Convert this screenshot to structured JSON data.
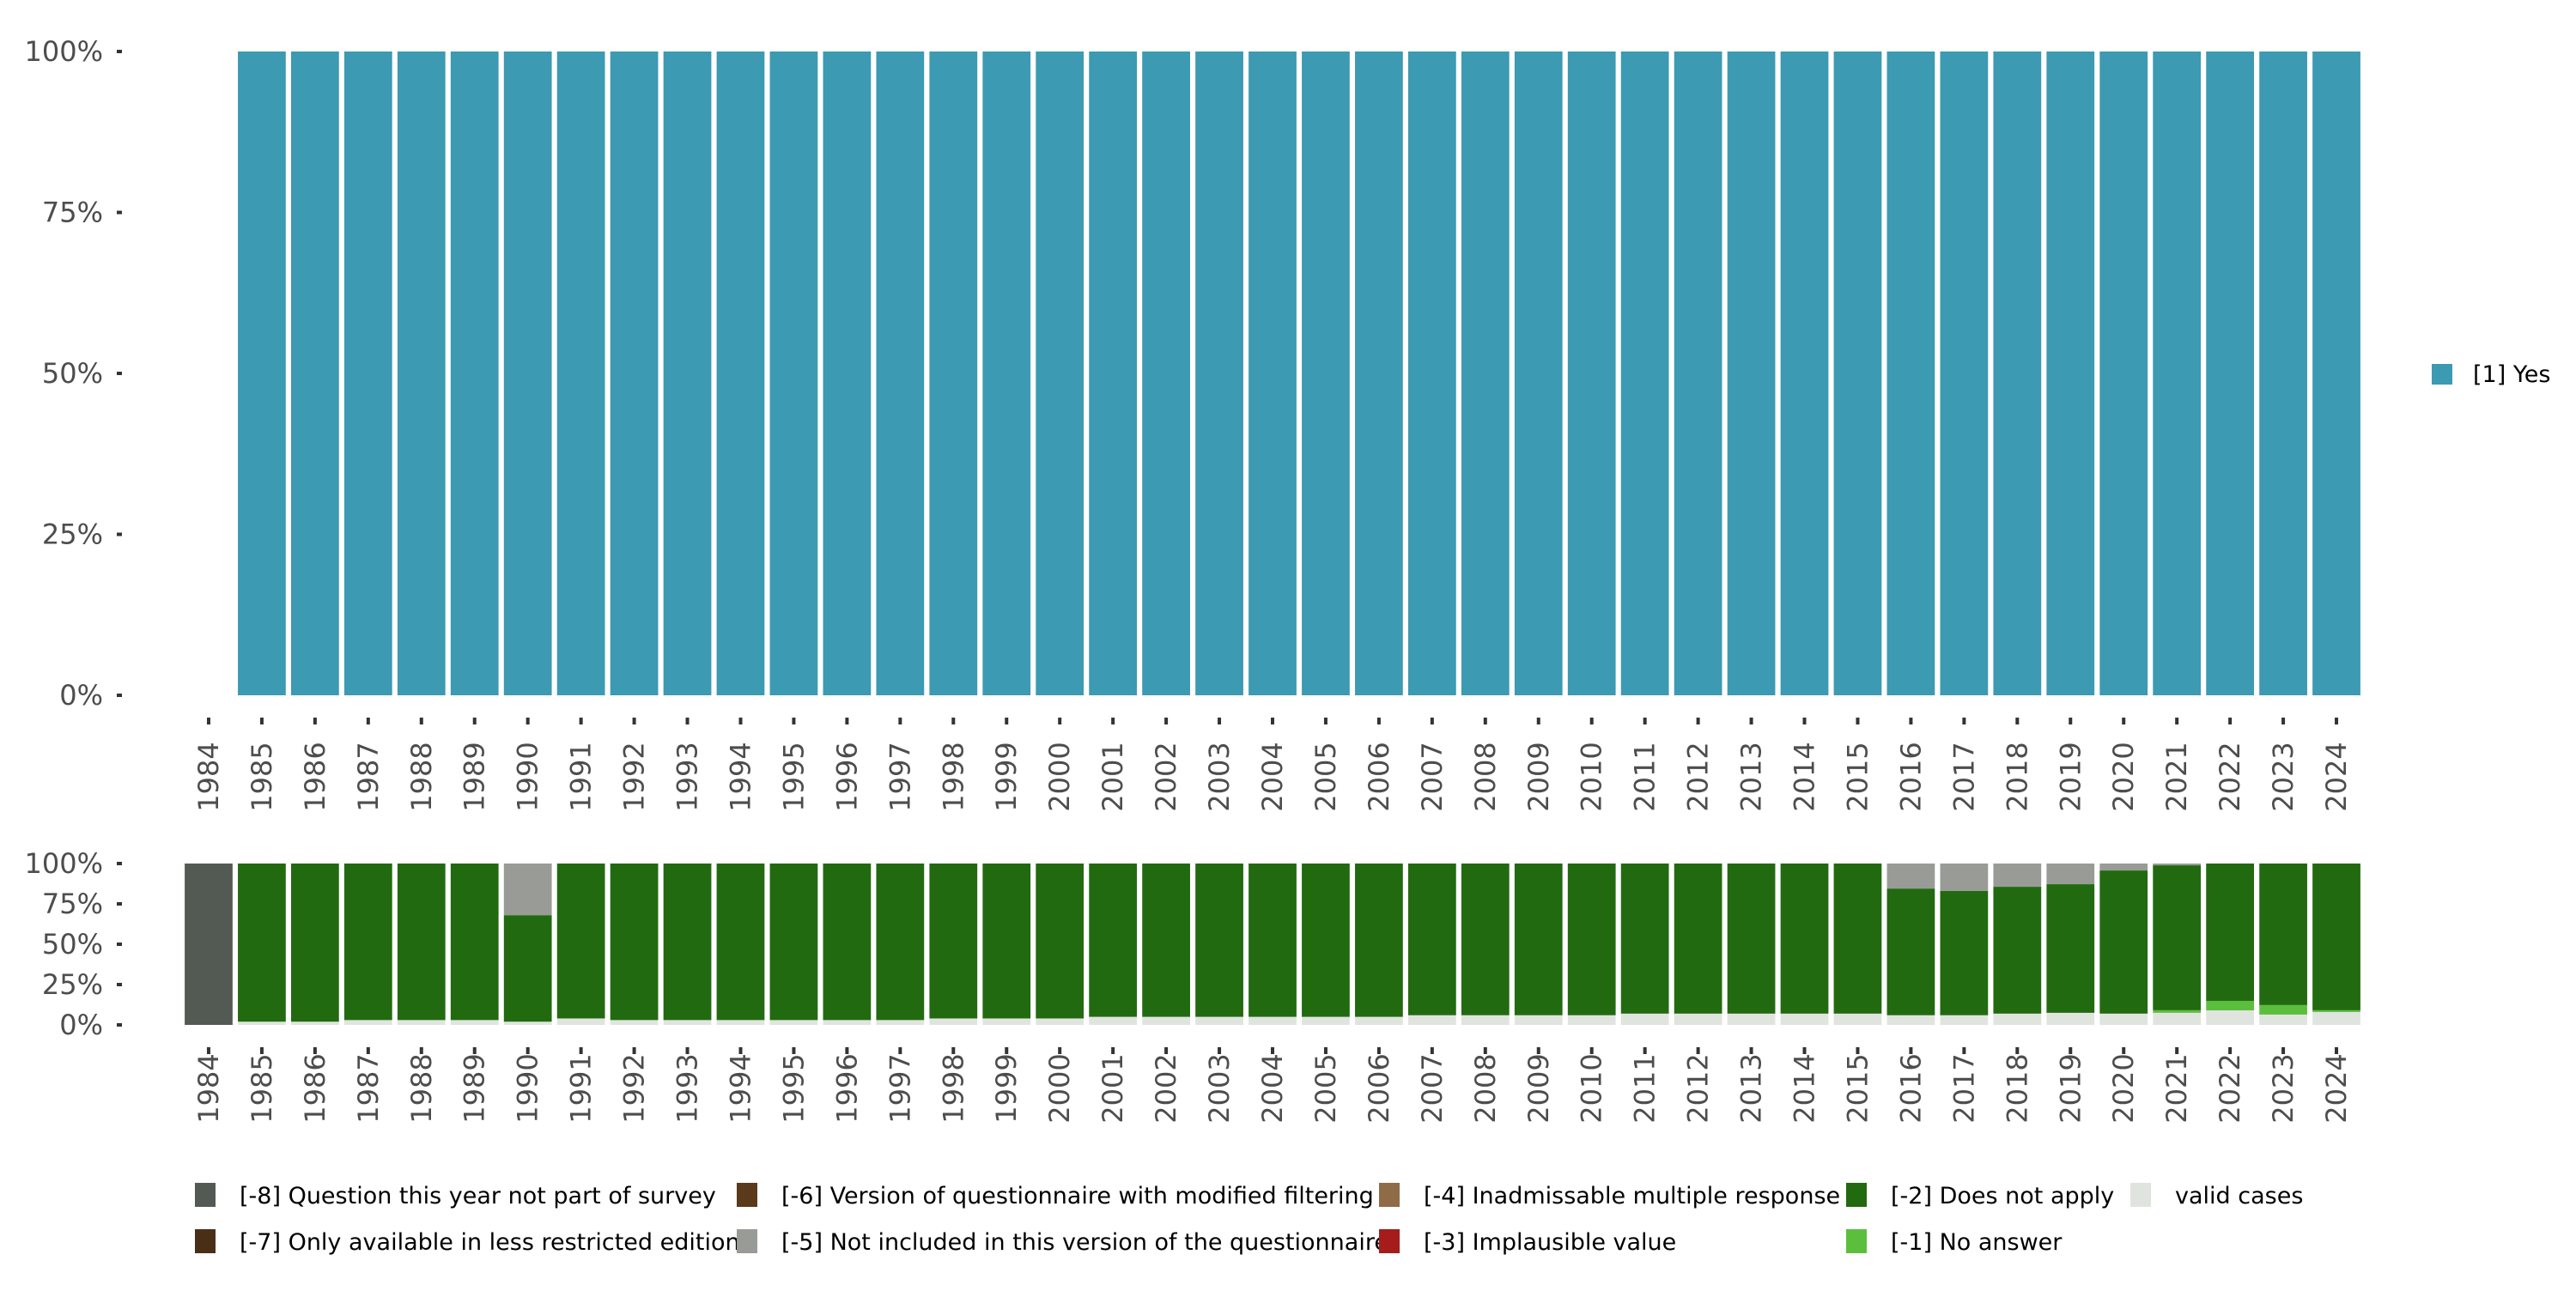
{
  "chart_data": [
    {
      "type": "bar",
      "stacked": true,
      "title": "",
      "xlabel": "",
      "ylabel": "",
      "ylim": [
        0,
        100
      ],
      "yticks": [
        "0%",
        "25%",
        "50%",
        "75%",
        "100%"
      ],
      "categories": [
        "1984",
        "1985",
        "1986",
        "1987",
        "1988",
        "1989",
        "1990",
        "1991",
        "1992",
        "1993",
        "1994",
        "1995",
        "1996",
        "1997",
        "1998",
        "1999",
        "2000",
        "2001",
        "2002",
        "2003",
        "2004",
        "2005",
        "2006",
        "2007",
        "2008",
        "2009",
        "2010",
        "2011",
        "2012",
        "2013",
        "2014",
        "2015",
        "2016",
        "2017",
        "2018",
        "2019",
        "2020",
        "2021",
        "2022",
        "2023",
        "2024"
      ],
      "legend_position": "right",
      "series": [
        {
          "name": "[1] Yes",
          "color": "#3c9ab2",
          "values": [
            0,
            100,
            100,
            100,
            100,
            100,
            100,
            100,
            100,
            100,
            100,
            100,
            100,
            100,
            100,
            100,
            100,
            100,
            100,
            100,
            100,
            100,
            100,
            100,
            100,
            100,
            100,
            100,
            100,
            100,
            100,
            100,
            100,
            100,
            100,
            100,
            100,
            100,
            100,
            100,
            100
          ]
        }
      ]
    },
    {
      "type": "bar",
      "stacked": true,
      "title": "",
      "xlabel": "",
      "ylabel": "",
      "ylim": [
        0,
        100
      ],
      "yticks": [
        "0%",
        "25%",
        "50%",
        "75%",
        "100%"
      ],
      "categories": [
        "1984",
        "1985",
        "1986",
        "1987",
        "1988",
        "1989",
        "1990",
        "1991",
        "1992",
        "1993",
        "1994",
        "1995",
        "1996",
        "1997",
        "1998",
        "1999",
        "2000",
        "2001",
        "2002",
        "2003",
        "2004",
        "2005",
        "2006",
        "2007",
        "2008",
        "2009",
        "2010",
        "2011",
        "2012",
        "2013",
        "2014",
        "2015",
        "2016",
        "2017",
        "2018",
        "2019",
        "2020",
        "2021",
        "2022",
        "2023",
        "2024"
      ],
      "legend_position": "bottom",
      "series": [
        {
          "name": "valid cases",
          "color": "#e0e4df",
          "values": [
            0,
            2,
            2,
            3,
            3,
            3,
            2,
            4,
            3,
            3,
            3,
            3,
            3,
            3,
            4,
            4,
            4,
            5,
            5,
            5,
            5,
            5,
            5,
            6,
            6,
            6,
            6,
            7,
            7,
            7,
            7,
            7,
            6,
            6,
            7,
            7.5,
            7,
            7.5,
            9,
            6.4,
            8
          ]
        },
        {
          "name": "[-1] No answer",
          "color": "#5bbf3d",
          "values": [
            0,
            0,
            0,
            0,
            0,
            0,
            0,
            0,
            0,
            0,
            0,
            0,
            0,
            0,
            0,
            0,
            0,
            0,
            0,
            0,
            0,
            0,
            0,
            0,
            0,
            0,
            0,
            0,
            0,
            0,
            0,
            0,
            0,
            0,
            0,
            0,
            0,
            1.6,
            5.9,
            5.9,
            1.1
          ]
        },
        {
          "name": "[-2] Does not apply",
          "color": "#226a10",
          "values": [
            0,
            98,
            98,
            97,
            97,
            97,
            66,
            96,
            97,
            97,
            97,
            97,
            97,
            97,
            96,
            96,
            96,
            95,
            95,
            95,
            95,
            95,
            95,
            94,
            94,
            94,
            94,
            93,
            93,
            93,
            93,
            93,
            78.5,
            77,
            78.6,
            79.7,
            88.7,
            89.8,
            85.1,
            87.7,
            90.9
          ]
        },
        {
          "name": "[-3] Implausible value",
          "color": "#a61c1c",
          "values": [
            0,
            0,
            0,
            0,
            0,
            0,
            0,
            0,
            0,
            0,
            0,
            0,
            0,
            0,
            0,
            0,
            0,
            0,
            0,
            0,
            0,
            0,
            0,
            0,
            0,
            0,
            0,
            0,
            0,
            0,
            0,
            0,
            0,
            0,
            0,
            0,
            0,
            0,
            0,
            0,
            0
          ]
        },
        {
          "name": "[-4] Inadmissable multiple response",
          "color": "#8f6b48",
          "values": [
            0,
            0,
            0,
            0,
            0,
            0,
            0,
            0,
            0,
            0,
            0,
            0,
            0,
            0,
            0,
            0,
            0,
            0,
            0,
            0,
            0,
            0,
            0,
            0,
            0,
            0,
            0,
            0,
            0,
            0,
            0,
            0,
            0,
            0,
            0,
            0,
            0,
            0,
            0,
            0,
            0
          ]
        },
        {
          "name": "[-5] Not included in this version of the questionnaire",
          "color": "#999c96",
          "values": [
            0,
            0,
            0,
            0,
            0,
            0,
            32,
            0,
            0,
            0,
            0,
            0,
            0,
            0,
            0,
            0,
            0,
            0,
            0,
            0,
            0,
            0,
            0,
            0,
            0,
            0,
            0,
            0,
            0,
            0,
            0,
            0,
            15.5,
            17,
            14.4,
            12.8,
            4.3,
            1.1,
            0,
            0,
            0
          ]
        },
        {
          "name": "[-6] Version of questionnaire with modified filtering",
          "color": "#5a3a1a",
          "values": [
            0,
            0,
            0,
            0,
            0,
            0,
            0,
            0,
            0,
            0,
            0,
            0,
            0,
            0,
            0,
            0,
            0,
            0,
            0,
            0,
            0,
            0,
            0,
            0,
            0,
            0,
            0,
            0,
            0,
            0,
            0,
            0,
            0,
            0,
            0,
            0,
            0,
            0,
            0,
            0,
            0
          ]
        },
        {
          "name": "[-7] Only available in less restricted edition",
          "color": "#4a2f17",
          "values": [
            0,
            0,
            0,
            0,
            0,
            0,
            0,
            0,
            0,
            0,
            0,
            0,
            0,
            0,
            0,
            0,
            0,
            0,
            0,
            0,
            0,
            0,
            0,
            0,
            0,
            0,
            0,
            0,
            0,
            0,
            0,
            0,
            0,
            0,
            0,
            0,
            0,
            0,
            0,
            0,
            0
          ]
        },
        {
          "name": "[-8] Question this year not part of survey",
          "color": "#535a54",
          "values": [
            100,
            0,
            0,
            0,
            0,
            0,
            0,
            0,
            0,
            0,
            0,
            0,
            0,
            0,
            0,
            0,
            0,
            0,
            0,
            0,
            0,
            0,
            0,
            0,
            0,
            0,
            0,
            0,
            0,
            0,
            0,
            0,
            0,
            0,
            0,
            0,
            0,
            0,
            0,
            0,
            0
          ]
        }
      ],
      "legend_order": [
        "[-8] Question this year not part of survey",
        "[-7] Only available in less restricted edition",
        "[-6] Version of questionnaire with modified filtering",
        "[-5] Not included in this version of the questionnaire",
        "[-4] Inadmissable multiple response",
        "[-3] Implausible value",
        "[-2] Does not apply",
        "[-1] No answer",
        "valid cases"
      ]
    }
  ]
}
